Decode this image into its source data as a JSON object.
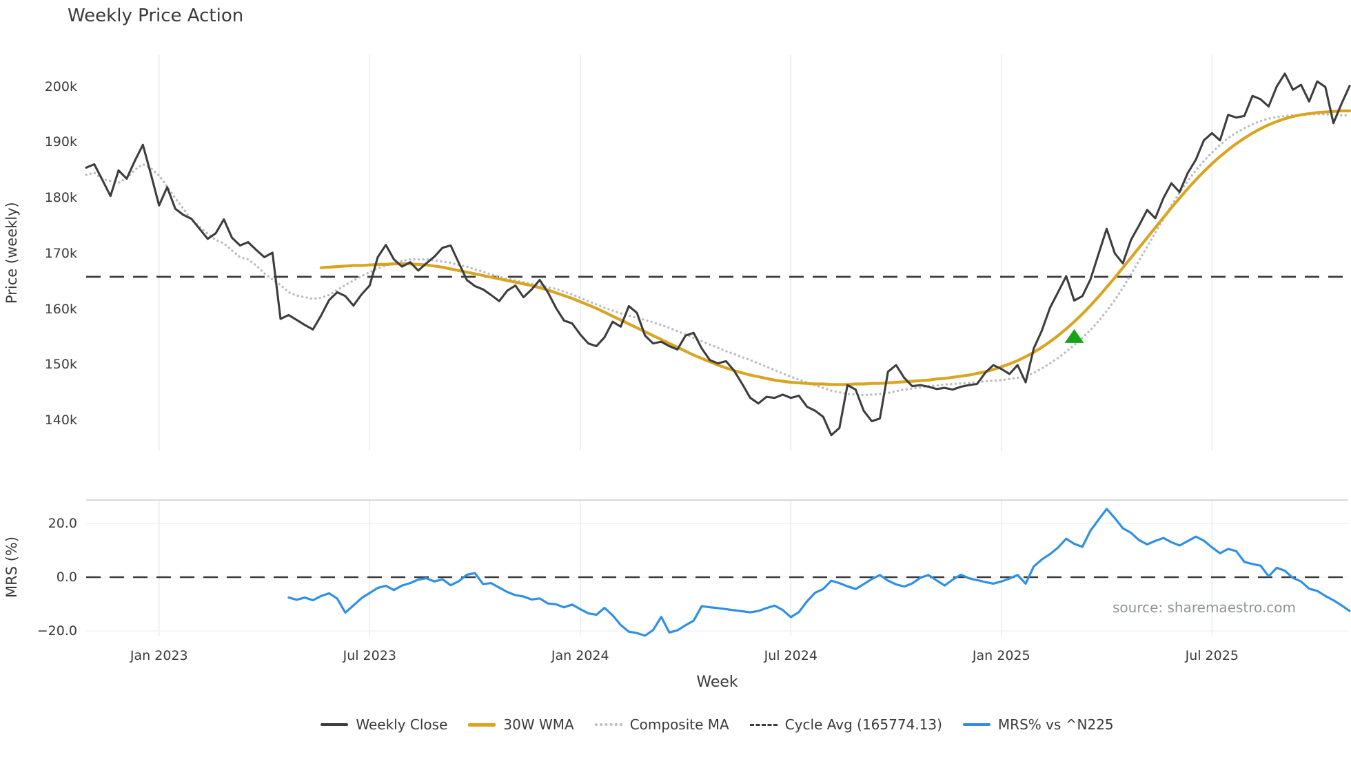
{
  "title": "Weekly Price Action",
  "axes": {
    "price_axis_label": "Price (weekly)",
    "mrs_axis_label": "MRS (%)",
    "x_axis_label": "Week",
    "price_ticks": [
      {
        "label": "200k",
        "value": 200
      },
      {
        "label": "190k",
        "value": 190
      },
      {
        "label": "180k",
        "value": 180
      },
      {
        "label": "170k",
        "value": 170
      },
      {
        "label": "160k",
        "value": 160
      },
      {
        "label": "150k",
        "value": 150
      },
      {
        "label": "140k",
        "value": 140
      }
    ],
    "mrs_ticks": [
      {
        "label": "20.0",
        "value": 20
      },
      {
        "label": "0.0",
        "value": 0
      },
      {
        "label": "−20.0",
        "value": -20
      }
    ],
    "x_ticks": [
      {
        "label": "Jan 2023",
        "week": 9
      },
      {
        "label": "Jul 2023",
        "week": 35
      },
      {
        "label": "Jan 2024",
        "week": 61
      },
      {
        "label": "Jul 2024",
        "week": 87
      },
      {
        "label": "Jan 2025",
        "week": 113
      },
      {
        "label": "Jul 2025",
        "week": 139
      }
    ]
  },
  "legend": {
    "items": [
      {
        "label": "Weekly Close",
        "swatch": "solid-dark"
      },
      {
        "label": "30W WMA",
        "swatch": "solid-gold"
      },
      {
        "label": "Composite MA",
        "swatch": "dotted-gray"
      },
      {
        "label": "Cycle Avg (165774.13)",
        "swatch": "dashed-dark"
      },
      {
        "label": "MRS% vs ^N225",
        "swatch": "solid-blue"
      }
    ]
  },
  "source_text": "source: sharemaestro.com",
  "colors": {
    "weekly_close": "#3d3d3d",
    "wma_30w": "#d9a521",
    "composite_ma": "#b9bcc1",
    "cycle_avg": "#3a3a3a",
    "mrs": "#2f8fe5",
    "signal_marker": "#17a317",
    "vgrid": "#e8ebf1",
    "hgrid_mrs": "#ededed",
    "panel_border": "#c9ccd2",
    "text": "#3a3a3a",
    "muted_text": "#8f9398"
  },
  "chart_data": [
    {
      "type": "line",
      "panel": "price",
      "title": "Weekly Price Action",
      "ylabel": "Price (weekly)",
      "xlabel": "Week",
      "values_unit": "thousands (k)",
      "ylim": [
        134.5,
        205.5
      ],
      "grid": "vertical-only",
      "cycle_avg_value": 165.77413,
      "cycle_avg_label_value": "165774.13",
      "series": [
        {
          "name": "Weekly Close",
          "start_week": 0,
          "values": [
            185.4,
            186.0,
            183.2,
            180.3,
            184.9,
            183.4,
            186.6,
            189.5,
            184.2,
            178.6,
            181.9,
            178.0,
            176.9,
            176.2,
            174.4,
            172.6,
            173.6,
            176.1,
            172.8,
            171.4,
            172.0,
            170.6,
            169.3,
            170.1,
            158.2,
            158.9,
            158.0,
            157.1,
            156.3,
            158.8,
            161.6,
            163.0,
            162.3,
            160.6,
            162.6,
            164.2,
            169.3,
            171.5,
            168.9,
            167.6,
            168.4,
            166.9,
            168.2,
            169.4,
            171.0,
            171.4,
            168.3,
            165.2,
            164.1,
            163.5,
            162.5,
            161.4,
            163.3,
            164.2,
            162.1,
            163.5,
            165.2,
            163.0,
            160.2,
            157.9,
            157.4,
            155.4,
            153.8,
            153.3,
            154.9,
            157.7,
            156.8,
            160.5,
            159.3,
            155.2,
            153.8,
            154.1,
            153.3,
            152.7,
            155.2,
            155.7,
            152.9,
            150.8,
            150.2,
            150.6,
            148.9,
            146.5,
            144.0,
            143.0,
            144.2,
            144.0,
            144.6,
            144.0,
            144.4,
            142.4,
            141.7,
            140.6,
            137.3,
            138.6,
            146.3,
            145.5,
            141.7,
            139.8,
            140.3,
            148.7,
            149.9,
            147.6,
            146.1,
            146.3,
            146.0,
            145.6,
            145.8,
            145.5,
            146.0,
            146.3,
            146.5,
            148.5,
            149.9,
            149.2,
            148.3,
            149.9,
            146.8,
            152.9,
            156.1,
            160.2,
            163.0,
            165.9,
            161.5,
            162.3,
            165.3,
            169.9,
            174.4,
            170.0,
            168.2,
            172.4,
            175.0,
            177.8,
            176.3,
            179.9,
            182.6,
            181.0,
            184.4,
            186.8,
            190.3,
            191.6,
            190.3,
            194.9,
            194.4,
            194.7,
            198.3,
            197.7,
            196.4,
            200.0,
            202.3,
            199.4,
            200.3,
            197.3,
            200.9,
            199.9,
            193.4,
            196.9,
            200.1
          ]
        },
        {
          "name": "30W WMA",
          "start_week": 29,
          "values": [
            167.4,
            167.5,
            167.6,
            167.7,
            167.8,
            167.8,
            167.9,
            168.0,
            168.0,
            168.1,
            168.1,
            168.1,
            168.0,
            167.9,
            167.7,
            167.5,
            167.2,
            166.9,
            166.6,
            166.3,
            166.0,
            165.7,
            165.4,
            165.1,
            164.8,
            164.5,
            164.2,
            163.8,
            163.4,
            162.9,
            162.4,
            161.9,
            161.3,
            160.7,
            160.1,
            159.4,
            158.7,
            158.0,
            157.3,
            156.6,
            155.9,
            155.2,
            154.5,
            153.8,
            153.1,
            152.4,
            151.7,
            151.1,
            150.5,
            149.9,
            149.4,
            148.9,
            148.5,
            148.1,
            147.8,
            147.5,
            147.2,
            147.0,
            146.8,
            146.7,
            146.6,
            146.5,
            146.5,
            146.4,
            146.4,
            146.4,
            146.5,
            146.5,
            146.6,
            146.6,
            146.7,
            146.8,
            146.9,
            147.0,
            147.1,
            147.2,
            147.4,
            147.5,
            147.7,
            147.9,
            148.1,
            148.4,
            148.7,
            149.1,
            149.6,
            150.1,
            150.7,
            151.4,
            152.2,
            153.1,
            154.1,
            155.2,
            156.4,
            157.7,
            159.1,
            160.6,
            162.2,
            163.9,
            165.6,
            167.4,
            169.2,
            171.0,
            172.8,
            174.6,
            176.4,
            178.2,
            179.9,
            181.6,
            183.2,
            184.7,
            186.1,
            187.4,
            188.6,
            189.7,
            190.7,
            191.6,
            192.4,
            193.1,
            193.7,
            194.2,
            194.6,
            194.9,
            195.1,
            195.3,
            195.4,
            195.5,
            195.6,
            195.6
          ]
        },
        {
          "name": "Composite MA",
          "start_week": 0,
          "values": [
            184.1,
            184.5,
            183.3,
            183.0,
            182.7,
            183.5,
            185.0,
            186.0,
            185.3,
            184.0,
            182.0,
            179.9,
            178.0,
            176.0,
            174.8,
            173.5,
            172.4,
            171.8,
            170.5,
            169.3,
            168.9,
            167.8,
            166.4,
            165.3,
            164.3,
            163.0,
            162.4,
            162.1,
            161.8,
            162.0,
            162.5,
            163.4,
            164.3,
            165.1,
            165.9,
            166.6,
            167.3,
            167.8,
            168.3,
            168.6,
            168.9,
            168.9,
            168.9,
            168.7,
            168.5,
            168.3,
            167.9,
            167.6,
            167.1,
            166.7,
            166.2,
            165.8,
            165.4,
            165.1,
            164.8,
            164.5,
            164.3,
            163.9,
            163.6,
            163.1,
            162.6,
            162.0,
            161.4,
            160.8,
            160.2,
            159.7,
            159.2,
            158.8,
            158.4,
            158.0,
            157.6,
            157.1,
            156.6,
            156.0,
            155.4,
            154.8,
            154.2,
            153.6,
            153.0,
            152.4,
            151.9,
            151.3,
            150.8,
            150.2,
            149.6,
            149.0,
            148.4,
            147.8,
            147.3,
            146.8,
            146.3,
            145.8,
            145.3,
            145.0,
            144.7,
            144.6,
            144.5,
            144.6,
            144.7,
            144.9,
            145.2,
            145.5,
            145.7,
            145.9,
            146.1,
            146.2,
            146.4,
            146.5,
            146.6,
            146.7,
            146.8,
            147.0,
            147.1,
            147.2,
            147.4,
            147.6,
            147.9,
            148.5,
            149.3,
            150.2,
            151.2,
            152.3,
            153.5,
            154.8,
            156.2,
            157.8,
            159.6,
            161.6,
            163.8,
            166.2,
            168.7,
            171.2,
            173.7,
            176.2,
            178.6,
            180.9,
            183.0,
            184.9,
            186.6,
            188.1,
            189.5,
            190.7,
            191.7,
            192.5,
            193.2,
            193.8,
            194.2,
            194.5,
            194.7,
            194.8,
            194.9,
            195.0,
            195.0,
            195.0,
            194.9,
            194.8,
            194.8
          ]
        }
      ],
      "marker": {
        "shape": "triangle-up",
        "color": "#17a317",
        "week": 122,
        "value": 155.0
      }
    },
    {
      "type": "line",
      "panel": "mrs",
      "ylabel": "MRS (%)",
      "xlabel": "Week",
      "ylim": [
        -22.5,
        28.5
      ],
      "zero_line": "dashed",
      "series": [
        {
          "name": "MRS% vs ^N225",
          "start_week": 25,
          "values": [
            -7.6,
            -8.4,
            -7.6,
            -8.6,
            -7.0,
            -6.0,
            -8.0,
            -13.2,
            -10.5,
            -7.8,
            -5.9,
            -4.0,
            -3.2,
            -4.8,
            -3.1,
            -2.2,
            -0.9,
            -0.4,
            -1.6,
            -0.8,
            -3.0,
            -1.5,
            0.9,
            1.5,
            -2.6,
            -2.2,
            -3.9,
            -5.5,
            -6.7,
            -7.2,
            -8.3,
            -7.9,
            -9.8,
            -10.1,
            -11.2,
            -10.2,
            -11.9,
            -13.5,
            -14.0,
            -11.4,
            -14.2,
            -17.8,
            -20.3,
            -20.8,
            -21.8,
            -19.7,
            -14.8,
            -20.6,
            -19.8,
            -17.9,
            -16.2,
            -10.8,
            -11.2,
            -11.5,
            -11.9,
            -12.3,
            -12.7,
            -13.1,
            -12.6,
            -11.5,
            -10.6,
            -12.2,
            -14.9,
            -13.0,
            -9.0,
            -5.8,
            -4.4,
            -1.3,
            -2.2,
            -3.4,
            -4.4,
            -2.6,
            -0.7,
            0.8,
            -1.3,
            -2.7,
            -3.5,
            -2.3,
            -0.2,
            0.8,
            -1.2,
            -3.1,
            -0.9,
            0.9,
            -0.4,
            -1.1,
            -1.8,
            -2.4,
            -1.6,
            -0.5,
            0.8,
            -2.4,
            4.0,
            6.6,
            8.6,
            11.0,
            14.3,
            12.4,
            11.3,
            17.3,
            21.4,
            25.4,
            22.0,
            18.2,
            16.5,
            13.8,
            12.2,
            13.5,
            14.6,
            13.0,
            11.8,
            13.4,
            15.1,
            13.6,
            11.1,
            8.9,
            10.5,
            9.7,
            5.7,
            4.9,
            4.3,
            0.3,
            3.5,
            2.4,
            -0.3,
            -1.6,
            -4.3,
            -5.1,
            -7.0,
            -8.6,
            -10.5,
            -12.6
          ]
        }
      ]
    }
  ]
}
